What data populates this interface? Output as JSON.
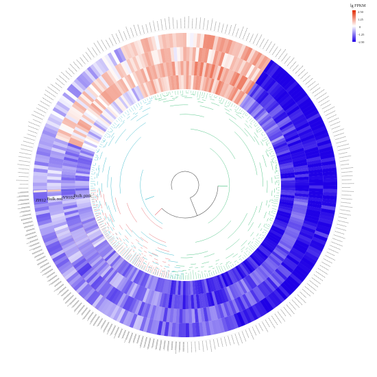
{
  "chart_data": {
    "type": "heatmap",
    "layout": "circular",
    "samples": [
      "Bulk pink",
      "Y9102",
      "Bulk red",
      "ZH12"
    ],
    "legend": {
      "title": "lg FPKM",
      "ticks": [
        2.5,
        1.25,
        0,
        -1.25,
        -2.5
      ],
      "tick_labels": [
        "2.50",
        "1.25",
        "0",
        "-1.25",
        "-2.50"
      ],
      "vmin": -2.5,
      "vmax": 2.5,
      "colors": {
        "low": "#1f00e6",
        "mid": "#ffffff",
        "high": "#e22800"
      }
    },
    "gene_count": 330,
    "clusters": [
      {
        "id": "cluster-teal",
        "color": "#2fb7c9",
        "start_deg": 90,
        "end_deg": 250
      },
      {
        "id": "cluster-green",
        "color": "#3fc07a",
        "start_deg": 250,
        "end_deg": 460
      },
      {
        "id": "cluster-red",
        "color": "#e7646b",
        "start_deg": 460,
        "end_deg": 538
      }
    ],
    "blocks": [
      {
        "start_deg": 90,
        "end_deg": 110,
        "values": [
          -0.4,
          0.2,
          0.6,
          -0.3
        ]
      },
      {
        "start_deg": 110,
        "end_deg": 125,
        "values": [
          -0.8,
          -0.5,
          -0.2,
          -1.0
        ]
      },
      {
        "start_deg": 125,
        "end_deg": 160,
        "values": [
          2.2,
          2.4,
          2.0,
          1.9
        ]
      },
      {
        "start_deg": 160,
        "end_deg": 200,
        "values": [
          -0.9,
          -1.1,
          -0.6,
          -0.8
        ]
      },
      {
        "start_deg": 200,
        "end_deg": 245,
        "values": [
          -0.3,
          0.4,
          0.3,
          -0.5
        ]
      },
      {
        "start_deg": 245,
        "end_deg": 275,
        "values": [
          0.5,
          0.6,
          0.3,
          0.4
        ]
      },
      {
        "start_deg": 275,
        "end_deg": 305,
        "values": [
          0.8,
          0.9,
          0.6,
          0.7
        ]
      },
      {
        "start_deg": 305,
        "end_deg": 335,
        "values": [
          -1.3,
          -1.8,
          -2.5,
          -2.5
        ]
      },
      {
        "start_deg": 335,
        "end_deg": 365,
        "values": [
          -2.0,
          -2.3,
          -2.5,
          -2.5
        ]
      },
      {
        "start_deg": 365,
        "end_deg": 400,
        "values": [
          -2.4,
          -1.6,
          -2.5,
          -2.2
        ]
      },
      {
        "start_deg": 400,
        "end_deg": 430,
        "values": [
          -2.2,
          -1.4,
          -1.6,
          -2.5
        ]
      },
      {
        "start_deg": 430,
        "end_deg": 460,
        "values": [
          -1.7,
          -1.9,
          -1.3,
          -1.5
        ]
      },
      {
        "start_deg": 460,
        "end_deg": 505,
        "values": [
          -1.1,
          -1.0,
          -1.3,
          -0.9
        ]
      },
      {
        "start_deg": 505,
        "end_deg": 538,
        "values": [
          -0.7,
          -0.9,
          -0.6,
          -1.0
        ]
      }
    ]
  }
}
